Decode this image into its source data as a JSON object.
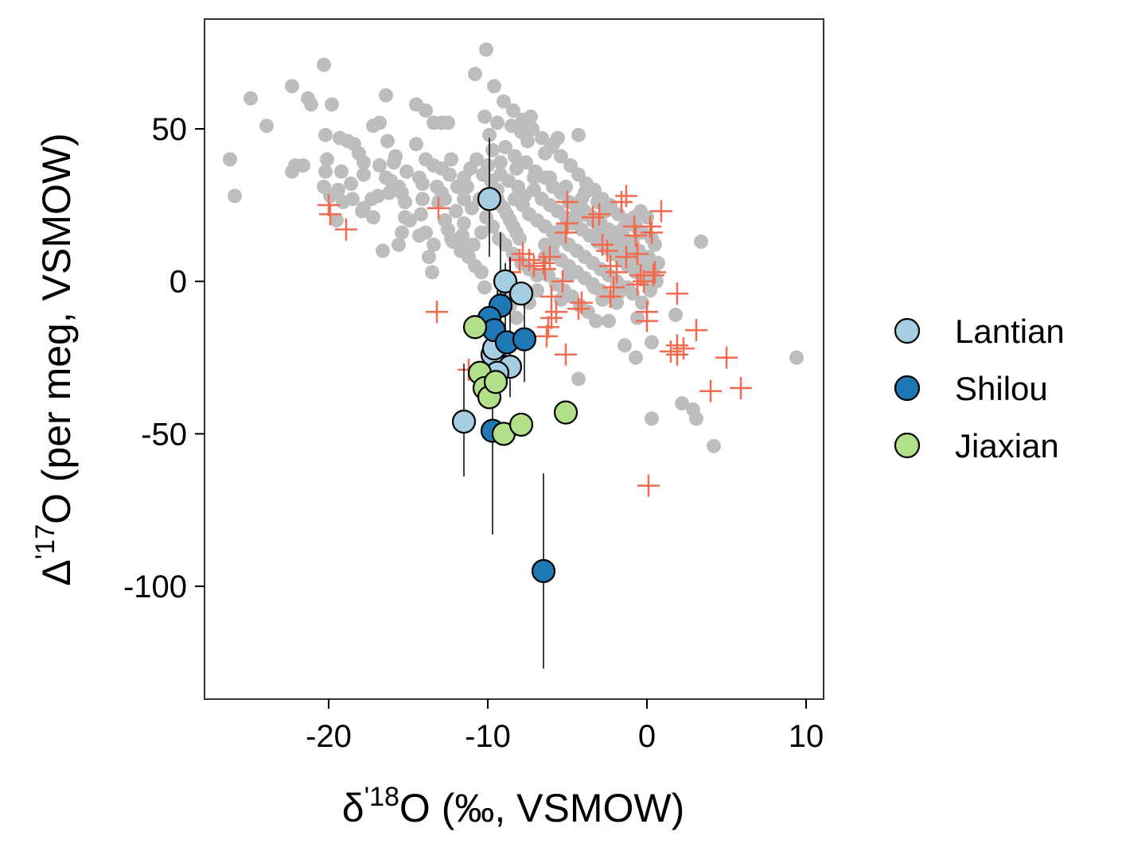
{
  "chart_data": {
    "type": "scatter",
    "xlabel": {
      "prefix": "δ",
      "sup": "'18",
      "suffix": "O (‰, VSMOW)"
    },
    "ylabel": {
      "prefix": "Δ",
      "sup": "'17",
      "suffix": "O (per meg, VSMOW)"
    },
    "xlim": [
      -27.8,
      11.1
    ],
    "ylim": [
      -137,
      86
    ],
    "x_ticks": [
      -20,
      -10,
      0,
      10
    ],
    "x_tick_labels": [
      "-20",
      "-10",
      "0",
      "10"
    ],
    "y_ticks": [
      50,
      0,
      -50,
      -100
    ],
    "y_tick_labels": [
      "50",
      "0",
      "-50",
      "-100"
    ],
    "grid": false,
    "legend_position": "right",
    "colors": {
      "gray_points": "#bdbdbd",
      "cross_points": "#f26a4f",
      "Lantian": "#a6cee3",
      "Shilou": "#1f78b4",
      "Jiaxian": "#b2df8a"
    },
    "background_points": [
      [
        -26.2,
        40
      ],
      [
        -25.9,
        28
      ],
      [
        -24.9,
        60
      ],
      [
        -23.9,
        51
      ],
      [
        -22.3,
        64
      ],
      [
        -22.1,
        38
      ],
      [
        -22.3,
        36
      ],
      [
        -21.6,
        38
      ],
      [
        -21.3,
        60
      ],
      [
        -21.1,
        58
      ],
      [
        -20.3,
        71
      ],
      [
        -20.2,
        48
      ],
      [
        -20.1,
        40
      ],
      [
        -20.2,
        36
      ],
      [
        -20.3,
        31
      ],
      [
        -19.9,
        28
      ],
      [
        -19.8,
        58
      ],
      [
        -19.3,
        47
      ],
      [
        -19.2,
        36
      ],
      [
        -19.4,
        30
      ],
      [
        -18.8,
        46
      ],
      [
        -18.4,
        45
      ],
      [
        -18.1,
        42
      ],
      [
        -17.8,
        35
      ],
      [
        -17.3,
        27
      ],
      [
        -17.2,
        21
      ],
      [
        -17.8,
        24
      ],
      [
        -17.2,
        51
      ],
      [
        -16.8,
        52
      ],
      [
        -16.4,
        61
      ],
      [
        -16.3,
        46
      ],
      [
        -16.1,
        33
      ],
      [
        -15.6,
        31
      ],
      [
        -16.4,
        34
      ],
      [
        -15.8,
        41
      ],
      [
        -15.4,
        29
      ],
      [
        -15.2,
        21
      ],
      [
        -15.4,
        16
      ],
      [
        -15.6,
        12
      ],
      [
        -16.6,
        10
      ],
      [
        -14.5,
        45
      ],
      [
        -14.3,
        34
      ],
      [
        -14.1,
        27
      ],
      [
        -14.2,
        22
      ],
      [
        -13.9,
        16
      ],
      [
        -13.7,
        8
      ],
      [
        -13.5,
        3
      ],
      [
        -14.5,
        58
      ],
      [
        -13.9,
        56
      ],
      [
        -13.4,
        52
      ],
      [
        -12.9,
        52
      ],
      [
        -12.5,
        52
      ],
      [
        -12.3,
        40
      ],
      [
        -12.9,
        37
      ],
      [
        -13.2,
        31
      ],
      [
        -12.7,
        27
      ],
      [
        -12.0,
        23
      ],
      [
        -12.5,
        17
      ],
      [
        -12.2,
        13
      ],
      [
        -11.7,
        10
      ],
      [
        -11.5,
        34
      ],
      [
        -11.3,
        31
      ],
      [
        -11.0,
        24
      ],
      [
        -11.5,
        19
      ],
      [
        -11.6,
        15
      ],
      [
        -11.2,
        8
      ],
      [
        -10.8,
        5
      ],
      [
        -10.4,
        3
      ],
      [
        -10.2,
        -2
      ],
      [
        -10.8,
        68
      ],
      [
        -10.1,
        76
      ],
      [
        -10.2,
        54
      ],
      [
        -9.9,
        48
      ],
      [
        -10.0,
        38
      ],
      [
        -9.8,
        33
      ],
      [
        -9.6,
        30
      ],
      [
        -9.4,
        27
      ],
      [
        -9.2,
        25
      ],
      [
        -9.0,
        24
      ],
      [
        -8.8,
        22
      ],
      [
        -8.6,
        20
      ],
      [
        -8.4,
        18
      ],
      [
        -8.2,
        16
      ],
      [
        -8.0,
        14
      ],
      [
        -9.6,
        64
      ],
      [
        -9.0,
        59
      ],
      [
        -8.4,
        56
      ],
      [
        -7.8,
        53
      ],
      [
        -7.2,
        50
      ],
      [
        -6.6,
        47
      ],
      [
        -6.0,
        44
      ],
      [
        -5.4,
        41
      ],
      [
        -4.8,
        38
      ],
      [
        -4.3,
        35
      ],
      [
        -3.8,
        32
      ],
      [
        -3.3,
        30
      ],
      [
        -2.8,
        27
      ],
      [
        -2.3,
        25
      ],
      [
        -1.8,
        22
      ],
      [
        -1.2,
        20
      ],
      [
        -0.7,
        18
      ],
      [
        -0.3,
        16
      ],
      [
        0.3,
        14
      ],
      [
        0.5,
        12
      ],
      [
        -8.3,
        41
      ],
      [
        -7.6,
        39
      ],
      [
        -7.0,
        36
      ],
      [
        -6.4,
        34
      ],
      [
        -5.9,
        31
      ],
      [
        -5.4,
        29
      ],
      [
        -4.9,
        26
      ],
      [
        -4.4,
        24
      ],
      [
        -3.9,
        22
      ],
      [
        -3.4,
        20
      ],
      [
        -2.9,
        17
      ],
      [
        -2.5,
        15
      ],
      [
        -2.0,
        13
      ],
      [
        -1.5,
        11
      ],
      [
        -1.0,
        9
      ],
      [
        -0.5,
        7
      ],
      [
        0.0,
        5
      ],
      [
        0.4,
        3
      ],
      [
        0.6,
        0
      ],
      [
        0.2,
        -3
      ],
      [
        -0.3,
        -7
      ],
      [
        -0.6,
        -12
      ],
      [
        -7.1,
        30
      ],
      [
        -6.6,
        27
      ],
      [
        -6.1,
        25
      ],
      [
        -5.6,
        23
      ],
      [
        -5.1,
        21
      ],
      [
        -4.6,
        19
      ],
      [
        -4.1,
        17
      ],
      [
        -3.6,
        15
      ],
      [
        -3.1,
        13
      ],
      [
        -2.6,
        11
      ],
      [
        -2.1,
        9
      ],
      [
        -1.6,
        7
      ],
      [
        -1.2,
        5
      ],
      [
        -0.7,
        3
      ],
      [
        -0.2,
        1
      ],
      [
        -7.8,
        25
      ],
      [
        -7.4,
        22
      ],
      [
        -6.9,
        20
      ],
      [
        -6.4,
        18
      ],
      [
        -5.9,
        16
      ],
      [
        -5.4,
        14
      ],
      [
        -4.9,
        12
      ],
      [
        -4.4,
        10
      ],
      [
        -3.9,
        8
      ],
      [
        -3.4,
        6
      ],
      [
        -2.9,
        4
      ],
      [
        -2.4,
        2
      ],
      [
        -1.9,
        0
      ],
      [
        -1.4,
        -2
      ],
      [
        -0.9,
        -4
      ],
      [
        -6.4,
        12
      ],
      [
        -5.9,
        9
      ],
      [
        -5.4,
        7
      ],
      [
        -4.9,
        5
      ],
      [
        -4.4,
        3
      ],
      [
        -3.9,
        1
      ],
      [
        -3.4,
        -1
      ],
      [
        -2.9,
        -3
      ],
      [
        -2.4,
        -5
      ],
      [
        -1.9,
        -7
      ],
      [
        -6.2,
        2
      ],
      [
        -5.7,
        -1
      ],
      [
        -5.2,
        -3
      ],
      [
        -4.7,
        -5
      ],
      [
        -4.2,
        -8
      ],
      [
        -3.7,
        -10
      ],
      [
        -3.2,
        -13
      ],
      [
        -4.3,
        -32
      ],
      [
        -2.4,
        -13
      ],
      [
        -1.4,
        -21
      ],
      [
        -0.7,
        -25
      ],
      [
        0.3,
        -20
      ],
      [
        1.8,
        -11
      ],
      [
        3.4,
        13
      ],
      [
        2.2,
        -40
      ],
      [
        3.1,
        -45
      ],
      [
        4.2,
        -54
      ],
      [
        0.3,
        -45
      ],
      [
        9.4,
        -25
      ],
      [
        2.9,
        -42
      ],
      [
        -7.5,
        46
      ],
      [
        -8.9,
        44
      ],
      [
        -9.7,
        43
      ],
      [
        -10.7,
        40
      ],
      [
        -11.1,
        37
      ],
      [
        -10.3,
        35
      ],
      [
        -9.2,
        35
      ],
      [
        -8.7,
        33
      ],
      [
        -8.1,
        31
      ],
      [
        -7.7,
        28
      ],
      [
        -9.4,
        30
      ],
      [
        -10.5,
        27
      ],
      [
        -8.3,
        27
      ],
      [
        -10.1,
        21
      ],
      [
        -11.5,
        27
      ],
      [
        -11.9,
        31
      ],
      [
        -12.4,
        35
      ],
      [
        -13.4,
        38
      ],
      [
        -13.9,
        40
      ],
      [
        -12.9,
        29
      ],
      [
        -12.7,
        20
      ],
      [
        -13.1,
        26
      ],
      [
        -14.1,
        32
      ],
      [
        -15.1,
        36
      ],
      [
        -15.9,
        39
      ],
      [
        -16.8,
        38
      ],
      [
        -17.8,
        39
      ],
      [
        -18.6,
        32
      ],
      [
        -19.1,
        26
      ],
      [
        -19.5,
        20
      ],
      [
        -18.5,
        27
      ],
      [
        -17.9,
        23
      ],
      [
        -16.9,
        28
      ],
      [
        -16.2,
        29
      ],
      [
        -15.2,
        26
      ],
      [
        -14.9,
        20
      ],
      [
        -14.3,
        15
      ],
      [
        -13.4,
        12
      ],
      [
        -12.3,
        14
      ],
      [
        -11.5,
        13
      ],
      [
        -10.9,
        12
      ],
      [
        -10.4,
        16
      ],
      [
        -9.7,
        18
      ],
      [
        -9.3,
        14
      ],
      [
        -8.9,
        12
      ],
      [
        -8.4,
        9
      ],
      [
        -7.9,
        6
      ],
      [
        -7.4,
        4
      ],
      [
        -6.9,
        2
      ],
      [
        -6.4,
        8
      ],
      [
        -5.9,
        12
      ],
      [
        -5.4,
        17
      ],
      [
        -4.9,
        19
      ],
      [
        -4.4,
        21
      ],
      [
        -3.9,
        23
      ],
      [
        -3.4,
        21
      ],
      [
        -2.9,
        19
      ],
      [
        -2.4,
        17
      ],
      [
        -1.9,
        16
      ],
      [
        -1.4,
        18
      ],
      [
        -0.8,
        21
      ],
      [
        -0.4,
        23
      ],
      [
        0.0,
        21
      ],
      [
        -3.9,
        29
      ],
      [
        -4.1,
        27
      ],
      [
        -5.1,
        31
      ],
      [
        -6.1,
        34
      ],
      [
        -7.1,
        34
      ],
      [
        -8.2,
        37
      ],
      [
        -9.2,
        39
      ],
      [
        -6.4,
        42
      ],
      [
        -5.9,
        45
      ],
      [
        -5.6,
        47
      ],
      [
        -7.3,
        54
      ],
      [
        -7.9,
        49
      ],
      [
        -8.5,
        51
      ],
      [
        -9.4,
        52
      ],
      [
        -4.3,
        48
      ],
      [
        -3.1,
        26
      ],
      [
        -2.6,
        23
      ],
      [
        -1.5,
        15
      ],
      [
        -0.9,
        13
      ],
      [
        -0.5,
        10
      ],
      [
        0.1,
        8
      ],
      [
        0.7,
        6
      ],
      [
        -1.2,
        -2
      ],
      [
        -1.8,
        -4
      ],
      [
        -2.8,
        -6
      ],
      [
        -3.3,
        -2
      ],
      [
        -4.9,
        2
      ],
      [
        -5.4,
        -6
      ],
      [
        -6.9,
        -3
      ],
      [
        -7.4,
        -7
      ],
      [
        -8.2,
        -12
      ],
      [
        -8.6,
        -8
      ],
      [
        -9.0,
        -4
      ]
    ],
    "cross_points": [
      [
        -20.0,
        25
      ],
      [
        -19.9,
        22
      ],
      [
        -18.9,
        17
      ],
      [
        -13.1,
        24
      ],
      [
        -13.2,
        -10
      ],
      [
        -11.2,
        -29
      ],
      [
        -8.6,
        3
      ],
      [
        -8.0,
        7
      ],
      [
        -7.8,
        9
      ],
      [
        -7.4,
        7
      ],
      [
        -7.1,
        5
      ],
      [
        -6.5,
        6
      ],
      [
        -6.4,
        4
      ],
      [
        -6.1,
        8
      ],
      [
        -6.0,
        -5
      ],
      [
        -6.2,
        -15
      ],
      [
        -6.3,
        -18
      ],
      [
        -6.0,
        -12
      ],
      [
        -5.7,
        -10
      ],
      [
        -5.3,
        0
      ],
      [
        -5.1,
        -24
      ],
      [
        -5.0,
        19
      ],
      [
        -5.1,
        16
      ],
      [
        -5.0,
        26
      ],
      [
        -4.3,
        -9
      ],
      [
        -4.1,
        -7
      ],
      [
        -3.4,
        21
      ],
      [
        -3.0,
        22
      ],
      [
        -2.8,
        12
      ],
      [
        -2.5,
        10
      ],
      [
        -2.3,
        5
      ],
      [
        -2.1,
        -2
      ],
      [
        -1.9,
        3
      ],
      [
        -1.6,
        26
      ],
      [
        -1.3,
        28
      ],
      [
        -0.8,
        18
      ],
      [
        -0.7,
        15
      ],
      [
        -0.6,
        9
      ],
      [
        -0.4,
        2
      ],
      [
        -0.2,
        0
      ],
      [
        0.0,
        -13
      ],
      [
        0.0,
        -10
      ],
      [
        0.1,
        -67
      ],
      [
        0.2,
        18
      ],
      [
        0.3,
        16
      ],
      [
        0.4,
        2
      ],
      [
        0.5,
        3
      ],
      [
        0.9,
        23
      ],
      [
        1.5,
        -23
      ],
      [
        1.9,
        -24
      ],
      [
        1.9,
        -21
      ],
      [
        1.9,
        -4
      ],
      [
        2.3,
        -22
      ],
      [
        3.1,
        -16
      ],
      [
        4.0,
        -36
      ],
      [
        5.0,
        -25
      ],
      [
        5.9,
        -35
      ],
      [
        -2.3,
        -5
      ],
      [
        -0.6,
        -1
      ],
      [
        -1.3,
        8
      ]
    ],
    "error_bars": [
      {
        "x": -9.9,
        "y_low": 8,
        "y_high": 47
      },
      {
        "x": -11.5,
        "y_low": -64,
        "y_high": -27
      },
      {
        "x": -9.7,
        "y_low": -83,
        "y_high": -15
      },
      {
        "x": -6.5,
        "y_low": -127,
        "y_high": -63
      },
      {
        "x": -9.2,
        "y_low": -36,
        "y_high": 16
      },
      {
        "x": -8.9,
        "y_low": -32,
        "y_high": 6
      },
      {
        "x": -8.6,
        "y_low": -38,
        "y_high": 8
      },
      {
        "x": -7.7,
        "y_low": -33,
        "y_high": -3
      },
      {
        "x": -9.4,
        "y_low": -29,
        "y_high": -3
      }
    ],
    "series": [
      {
        "name": "Lantian",
        "points": [
          [
            -9.9,
            27
          ],
          [
            -8.9,
            0
          ],
          [
            -7.9,
            -4
          ],
          [
            -9.7,
            -24
          ],
          [
            -8.6,
            -28
          ],
          [
            -9.4,
            -30
          ],
          [
            -11.5,
            -46
          ],
          [
            -9.6,
            -22
          ]
        ]
      },
      {
        "name": "Shilou",
        "points": [
          [
            -9.2,
            -8
          ],
          [
            -9.9,
            -12
          ],
          [
            -9.6,
            -16
          ],
          [
            -8.8,
            -20
          ],
          [
            -7.7,
            -19
          ],
          [
            -9.7,
            -49
          ],
          [
            -6.5,
            -95
          ]
        ]
      },
      {
        "name": "Jiaxian",
        "points": [
          [
            -10.8,
            -15
          ],
          [
            -10.5,
            -30
          ],
          [
            -10.2,
            -35
          ],
          [
            -9.9,
            -38
          ],
          [
            -9.5,
            -33
          ],
          [
            -9.0,
            -50
          ],
          [
            -7.9,
            -47
          ],
          [
            -5.1,
            -43
          ]
        ]
      }
    ]
  }
}
